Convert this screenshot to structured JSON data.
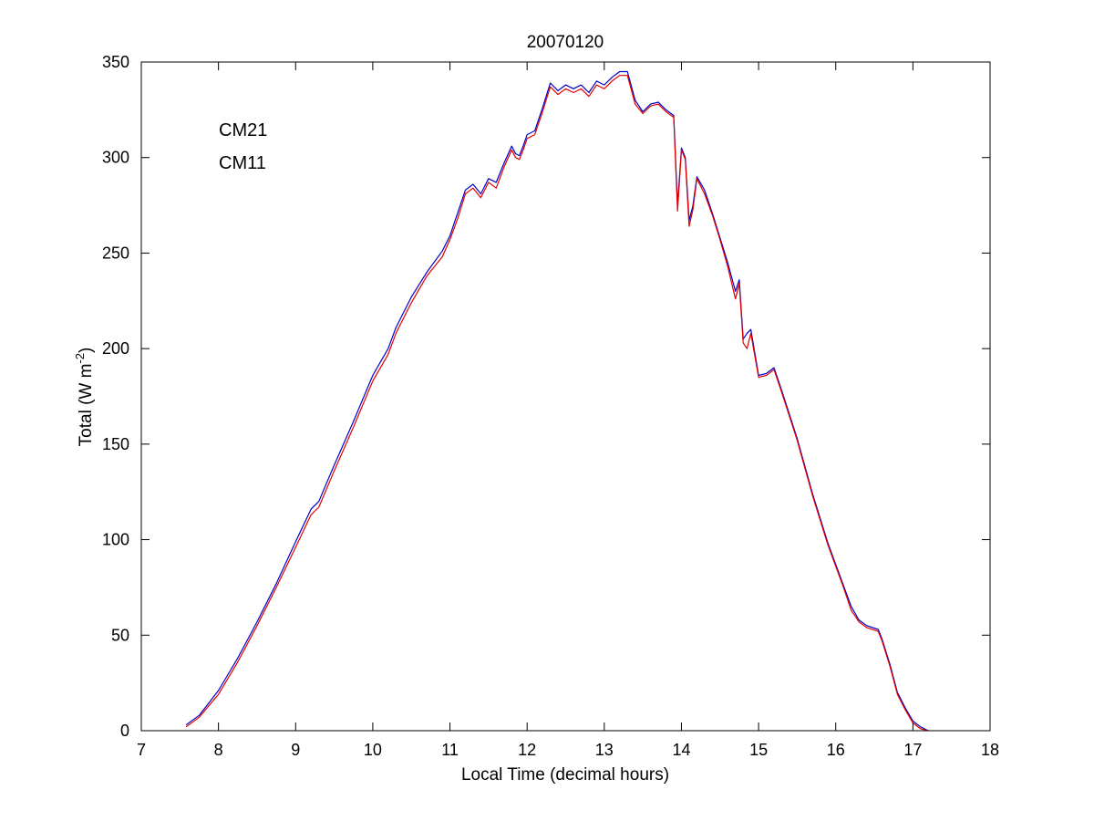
{
  "colors": {
    "cm21": "#0000c8",
    "cm11": "#e00000",
    "axes": "#000000",
    "background": "#ffffff"
  },
  "chart_data": {
    "type": "line",
    "title": "20070120",
    "xlabel": "Local Time (decimal hours)",
    "ylabel_main": "Total (W m",
    "ylabel_sup": "-2",
    "ylabel_close": ")",
    "xlim": [
      7,
      18
    ],
    "ylim": [
      0,
      350
    ],
    "xticks": [
      7,
      8,
      9,
      10,
      11,
      12,
      13,
      14,
      15,
      16,
      17,
      18
    ],
    "yticks": [
      0,
      50,
      100,
      150,
      200,
      250,
      300,
      350
    ],
    "x_tick_labels": [
      "7",
      "8",
      "9",
      "10",
      "11",
      "12",
      "13",
      "14",
      "15",
      "16",
      "17",
      "18"
    ],
    "y_tick_labels": [
      "0",
      "50",
      "100",
      "150",
      "200",
      "250",
      "300",
      "350"
    ],
    "grid": false,
    "legend_placement": "top-left",
    "series": [
      {
        "name": "CM21",
        "color": "#0000c8",
        "x": [
          7.58,
          7.75,
          8.0,
          8.25,
          8.5,
          8.75,
          9.0,
          9.2,
          9.3,
          9.5,
          9.75,
          10.0,
          10.2,
          10.3,
          10.5,
          10.7,
          10.9,
          11.0,
          11.1,
          11.2,
          11.3,
          11.4,
          11.5,
          11.6,
          11.7,
          11.8,
          11.85,
          11.9,
          11.95,
          12.0,
          12.1,
          12.2,
          12.3,
          12.4,
          12.5,
          12.6,
          12.7,
          12.8,
          12.9,
          13.0,
          13.1,
          13.2,
          13.3,
          13.4,
          13.5,
          13.6,
          13.7,
          13.8,
          13.9,
          13.95,
          14.0,
          14.05,
          14.1,
          14.15,
          14.2,
          14.3,
          14.4,
          14.5,
          14.6,
          14.7,
          14.75,
          14.8,
          14.85,
          14.9,
          15.0,
          15.1,
          15.2,
          15.3,
          15.5,
          15.7,
          15.9,
          16.1,
          16.2,
          16.3,
          16.4,
          16.55,
          16.6,
          16.7,
          16.8,
          16.9,
          17.0,
          17.1,
          17.2
        ],
        "y": [
          3,
          8,
          21,
          38,
          57,
          77,
          99,
          116,
          120,
          139,
          162,
          186,
          200,
          211,
          227,
          240,
          251,
          259,
          271,
          283,
          286,
          281,
          289,
          287,
          297,
          306,
          302,
          301,
          306,
          312,
          314,
          326,
          339,
          335,
          338,
          336,
          338,
          334,
          340,
          338,
          342,
          345,
          345,
          330,
          324,
          328,
          329,
          325,
          322,
          275,
          305,
          300,
          267,
          275,
          290,
          283,
          271,
          258,
          245,
          230,
          236,
          205,
          208,
          210,
          186,
          187,
          190,
          178,
          153,
          124,
          98,
          76,
          65,
          58,
          55,
          53,
          48,
          35,
          20,
          12,
          5,
          2,
          0
        ]
      },
      {
        "name": "CM11",
        "color": "#e00000",
        "x": [
          7.58,
          7.75,
          8.0,
          8.25,
          8.5,
          8.75,
          9.0,
          9.2,
          9.3,
          9.5,
          9.75,
          10.0,
          10.2,
          10.3,
          10.5,
          10.7,
          10.9,
          11.0,
          11.1,
          11.2,
          11.3,
          11.4,
          11.5,
          11.6,
          11.7,
          11.8,
          11.85,
          11.9,
          11.95,
          12.0,
          12.1,
          12.2,
          12.3,
          12.4,
          12.5,
          12.6,
          12.7,
          12.8,
          12.9,
          13.0,
          13.1,
          13.2,
          13.3,
          13.4,
          13.5,
          13.6,
          13.7,
          13.8,
          13.9,
          13.95,
          14.0,
          14.05,
          14.1,
          14.15,
          14.2,
          14.3,
          14.4,
          14.5,
          14.6,
          14.7,
          14.75,
          14.8,
          14.85,
          14.9,
          15.0,
          15.1,
          15.2,
          15.3,
          15.5,
          15.7,
          15.9,
          16.1,
          16.2,
          16.3,
          16.4,
          16.55,
          16.6,
          16.7,
          16.8,
          16.9,
          17.0,
          17.1,
          17.2
        ],
        "y": [
          2,
          7,
          19,
          36,
          55,
          75,
          96,
          113,
          117,
          136,
          159,
          183,
          197,
          208,
          224,
          238,
          248,
          257,
          268,
          281,
          284,
          279,
          287,
          284,
          295,
          304,
          300,
          299,
          304,
          310,
          312,
          324,
          337,
          333,
          336,
          334,
          336,
          332,
          338,
          336,
          340,
          343,
          343,
          328,
          323,
          327,
          328,
          324,
          321,
          272,
          304,
          299,
          264,
          273,
          289,
          281,
          270,
          257,
          243,
          226,
          234,
          203,
          200,
          208,
          185,
          186,
          189,
          177,
          152,
          123,
          97,
          75,
          63,
          57,
          54,
          52,
          47,
          34,
          19,
          11,
          4,
          1,
          0
        ]
      }
    ]
  }
}
